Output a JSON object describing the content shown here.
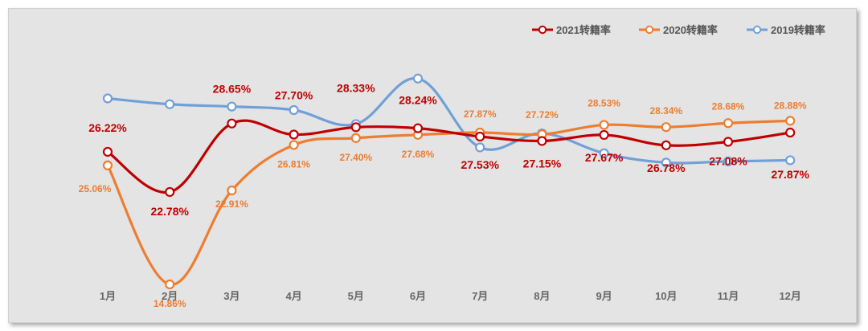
{
  "chart_data": {
    "type": "line",
    "categories": [
      "1月",
      "2月",
      "3月",
      "4月",
      "5月",
      "6月",
      "7月",
      "8月",
      "9月",
      "10月",
      "11月",
      "12月"
    ],
    "series": [
      {
        "name": "2021转籍率",
        "color": "#c00000",
        "values": [
          26.22,
          22.78,
          28.65,
          27.7,
          28.33,
          28.24,
          27.53,
          27.15,
          27.67,
          26.78,
          27.08,
          27.87
        ],
        "labels": [
          "26.22%",
          "22.78%",
          "28.65%",
          "27.70%",
          "28.33%",
          "28.24%",
          "27.53%",
          "27.15%",
          "27.67%",
          "26.78%",
          "27.08%",
          "27.87%"
        ]
      },
      {
        "name": "2020转籍率",
        "color": "#ed7d31",
        "values": [
          25.06,
          14.86,
          22.91,
          26.81,
          27.4,
          27.68,
          27.87,
          27.72,
          28.53,
          28.34,
          28.68,
          28.88
        ],
        "labels": [
          "25.06%",
          "14.86%",
          "22.91%",
          "26.81%",
          "27.40%",
          "27.68%",
          "27.87%",
          "27.72%",
          "28.53%",
          "28.34%",
          "28.68%",
          "28.88%"
        ]
      },
      {
        "name": "2019转籍率",
        "color": "#70a0d8",
        "values": [
          30.8,
          30.3,
          30.1,
          29.8,
          28.6,
          32.5,
          26.6,
          27.8,
          26.1,
          25.3,
          25.4,
          25.5
        ],
        "labels": []
      }
    ],
    "ylim": [
      13,
      34
    ],
    "grid": false,
    "legend": "top-right"
  }
}
